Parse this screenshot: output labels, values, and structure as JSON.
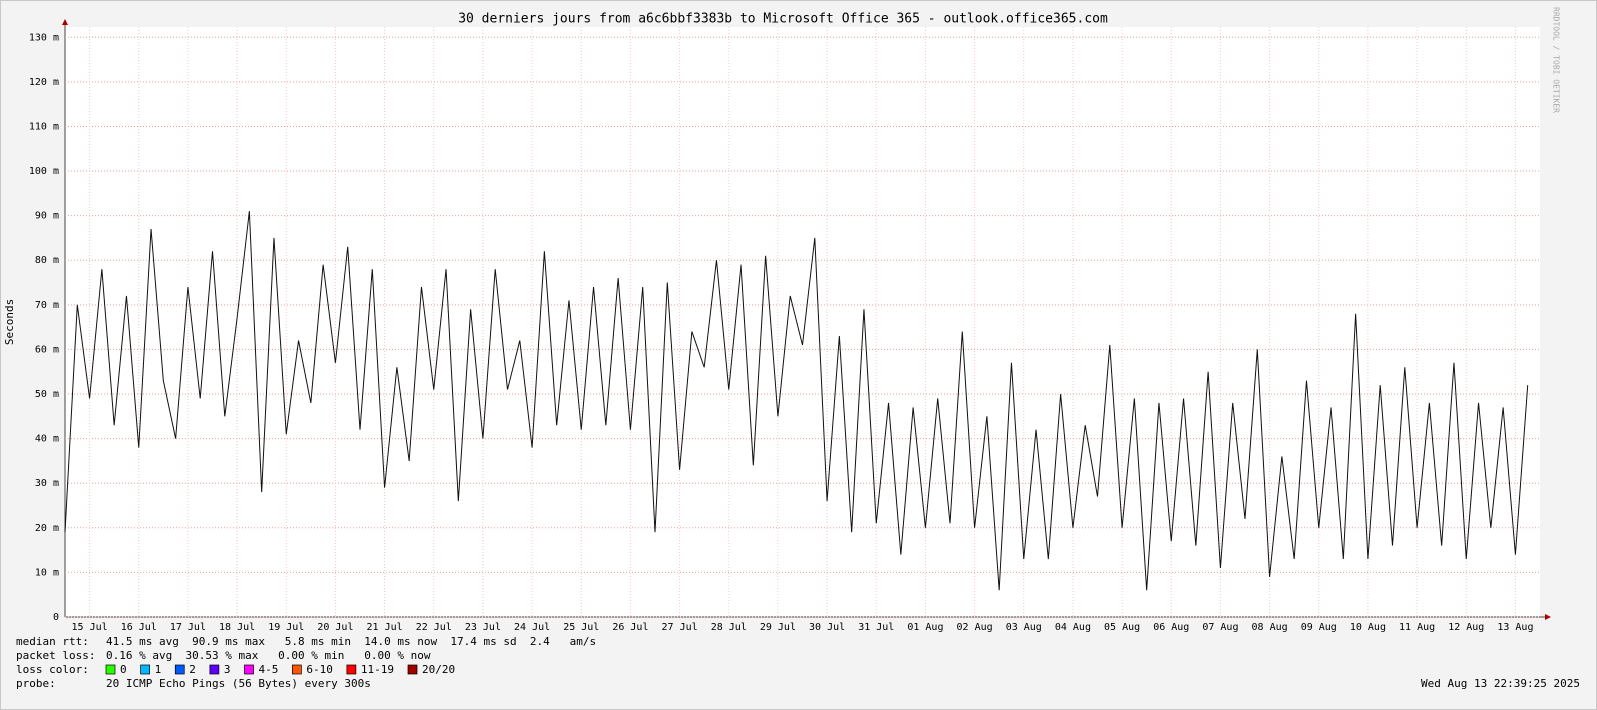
{
  "chart_data": {
    "type": "line",
    "title": "30 derniers jours from a6c6bbf3383b to Microsoft Office 365 - outlook.office365.com",
    "y_label": "Seconds",
    "watermark": "RRDTOOL / TOBI OETIKER",
    "xlim": [
      0,
      30
    ],
    "xticks": [
      {
        "value": 0.5,
        "label": "15 Jul"
      },
      {
        "value": 1.5,
        "label": "16 Jul"
      },
      {
        "value": 2.5,
        "label": "17 Jul"
      },
      {
        "value": 3.5,
        "label": "18 Jul"
      },
      {
        "value": 4.5,
        "label": "19 Jul"
      },
      {
        "value": 5.5,
        "label": "20 Jul"
      },
      {
        "value": 6.5,
        "label": "21 Jul"
      },
      {
        "value": 7.5,
        "label": "22 Jul"
      },
      {
        "value": 8.5,
        "label": "23 Jul"
      },
      {
        "value": 9.5,
        "label": "24 Jul"
      },
      {
        "value": 10.5,
        "label": "25 Jul"
      },
      {
        "value": 11.5,
        "label": "26 Jul"
      },
      {
        "value": 12.5,
        "label": "27 Jul"
      },
      {
        "value": 13.5,
        "label": "28 Jul"
      },
      {
        "value": 14.5,
        "label": "29 Jul"
      },
      {
        "value": 15.5,
        "label": "30 Jul"
      },
      {
        "value": 16.5,
        "label": "31 Jul"
      },
      {
        "value": 17.5,
        "label": "01 Aug"
      },
      {
        "value": 18.5,
        "label": "02 Aug"
      },
      {
        "value": 19.5,
        "label": "03 Aug"
      },
      {
        "value": 20.5,
        "label": "04 Aug"
      },
      {
        "value": 21.5,
        "label": "05 Aug"
      },
      {
        "value": 22.5,
        "label": "06 Aug"
      },
      {
        "value": 23.5,
        "label": "07 Aug"
      },
      {
        "value": 24.5,
        "label": "08 Aug"
      },
      {
        "value": 25.5,
        "label": "09 Aug"
      },
      {
        "value": 26.5,
        "label": "10 Aug"
      },
      {
        "value": 27.5,
        "label": "11 Aug"
      },
      {
        "value": 28.5,
        "label": "12 Aug"
      },
      {
        "value": 29.5,
        "label": "13 Aug"
      }
    ],
    "ylim": [
      0,
      0.1323
    ],
    "yticks": [
      0,
      {
        "value": 0.01,
        "label": "10 m"
      },
      {
        "value": 0.02,
        "label": "20 m"
      },
      {
        "value": 0.03,
        "label": "30 m"
      },
      {
        "value": 0.04,
        "label": "40 m"
      },
      {
        "value": 0.05,
        "label": "50 m"
      },
      {
        "value": 0.06,
        "label": "60 m"
      },
      {
        "value": 0.07,
        "label": "70 m"
      },
      {
        "value": 0.08,
        "label": "80 m"
      },
      {
        "value": 0.09,
        "label": "90 m"
      },
      {
        "value": 0.1,
        "label": "100 m"
      },
      {
        "value": 0.11,
        "label": "110 m"
      },
      {
        "value": 0.12,
        "label": "120 m"
      },
      {
        "value": 0.13,
        "label": "130 m"
      }
    ],
    "grid": true,
    "x": [
      0,
      0.25,
      0.5,
      0.75,
      1,
      1.25,
      1.5,
      1.75,
      2,
      2.25,
      2.5,
      2.75,
      3,
      3.25,
      3.5,
      3.75,
      4,
      4.25,
      4.5,
      4.75,
      5,
      5.25,
      5.5,
      5.75,
      6,
      6.25,
      6.5,
      6.75,
      7,
      7.25,
      7.5,
      7.75,
      8,
      8.25,
      8.5,
      8.75,
      9,
      9.25,
      9.5,
      9.75,
      10,
      10.25,
      10.5,
      10.75,
      11,
      11.25,
      11.5,
      11.75,
      12,
      12.25,
      12.5,
      12.75,
      13,
      13.25,
      13.5,
      13.75,
      14,
      14.25,
      14.5,
      14.75,
      15,
      15.25,
      15.5,
      15.75,
      16,
      16.25,
      16.5,
      16.75,
      17,
      17.25,
      17.5,
      17.75,
      18,
      18.25,
      18.5,
      18.75,
      19,
      19.25,
      19.5,
      19.75,
      20,
      20.25,
      20.5,
      20.75,
      21,
      21.25,
      21.5,
      21.75,
      22,
      22.25,
      22.5,
      22.75,
      23,
      23.25,
      23.5,
      23.75,
      24,
      24.25,
      24.5,
      24.75,
      25,
      25.25,
      25.5,
      25.75,
      26,
      26.25,
      26.5,
      26.75,
      27,
      27.25,
      27.5,
      27.75,
      28,
      28.25,
      28.5,
      28.75,
      29,
      29.25,
      29.5,
      29.75
    ],
    "series": [
      {
        "name": "median rtt:",
        "color": "#111111",
        "values": [
          0.019,
          0.07,
          0.049,
          0.078,
          0.043,
          0.072,
          0.038,
          0.087,
          0.053,
          0.04,
          0.074,
          0.049,
          0.082,
          0.045,
          0.067,
          0.091,
          0.028,
          0.085,
          0.041,
          0.062,
          0.048,
          0.079,
          0.057,
          0.083,
          0.042,
          0.078,
          0.029,
          0.056,
          0.035,
          0.074,
          0.051,
          0.078,
          0.026,
          0.069,
          0.04,
          0.078,
          0.051,
          0.062,
          0.038,
          0.082,
          0.043,
          0.071,
          0.042,
          0.074,
          0.043,
          0.076,
          0.042,
          0.074,
          0.019,
          0.075,
          0.033,
          0.064,
          0.056,
          0.08,
          0.051,
          0.079,
          0.034,
          0.081,
          0.045,
          0.072,
          0.061,
          0.085,
          0.026,
          0.063,
          0.019,
          0.069,
          0.021,
          0.048,
          0.014,
          0.047,
          0.02,
          0.049,
          0.021,
          0.064,
          0.02,
          0.045,
          0.006,
          0.057,
          0.013,
          0.042,
          0.013,
          0.05,
          0.02,
          0.043,
          0.027,
          0.061,
          0.02,
          0.049,
          0.006,
          0.048,
          0.017,
          0.049,
          0.016,
          0.055,
          0.011,
          0.048,
          0.022,
          0.06,
          0.009,
          0.036,
          0.013,
          0.053,
          0.02,
          0.047,
          0.013,
          0.068,
          0.013,
          0.052,
          0.016,
          0.056,
          0.02,
          0.048,
          0.016,
          0.057,
          0.013,
          0.048,
          0.02,
          0.047,
          0.014,
          0.052
        ]
      }
    ],
    "stats": {
      "rtt_label": "median rtt:",
      "rtt": "41.5 ms avg  90.9 ms max   5.8 ms min  14.0 ms now  17.4 ms sd  2.4   am/s",
      "loss_label": "packet loss:",
      "loss": "0.16 % avg  30.53 % max   0.00 % min   0.00 % now",
      "color_label": "loss color:",
      "probe_label": "probe:",
      "probe": "20 ICMP Echo Pings (56 Bytes) every 300s",
      "timestamp": "Wed Aug 13 22:39:25 2025"
    },
    "loss_colors": [
      {
        "name": "0",
        "color": "#26ff00"
      },
      {
        "name": "1",
        "color": "#00b8ff"
      },
      {
        "name": "2",
        "color": "#0059ff"
      },
      {
        "name": "3",
        "color": "#5e00ff"
      },
      {
        "name": "4-5",
        "color": "#ff00ff"
      },
      {
        "name": "6-10",
        "color": "#ff5500"
      },
      {
        "name": "11-19",
        "color": "#ff0000"
      },
      {
        "name": "20/20",
        "color": "#a10000"
      }
    ]
  }
}
